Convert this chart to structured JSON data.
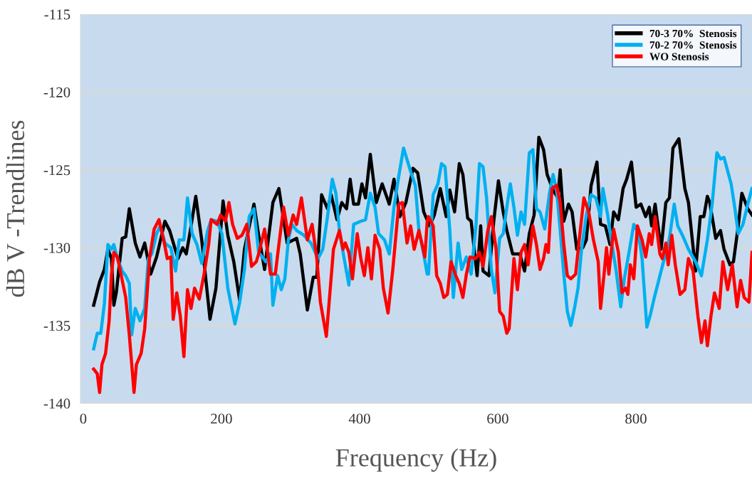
{
  "chart_data": {
    "type": "line",
    "xlabel": "Frequency (Hz)",
    "ylabel": "dB V -Trendlines",
    "xlim": [
      -4,
      968
    ],
    "xticks": [
      0,
      200,
      400,
      600,
      800
    ],
    "ylim": [
      -140,
      -115
    ],
    "yticks": [
      -140,
      -135,
      -130,
      -125,
      -120,
      -115
    ],
    "grid": "y",
    "legend": "top right",
    "marker": "none",
    "line_style": "solid",
    "series": [
      {
        "name": "70-3 70%  Stenosis",
        "color": "#000000",
        "x": [
          15.1,
          23.7,
          30.6,
          35.7,
          40.9,
          44.3,
          47.8,
          56.4,
          61.5,
          66.7,
          75.3,
          82.1,
          89.0,
          97.6,
          106.2,
          118.2,
          125.1,
          137.1,
          144.0,
          149.1,
          154.3,
          162.9,
          171.5,
          183.5,
          192.1,
          202.4,
          209.3,
          217.9,
          226.5,
          233.3,
          247.1,
          253.9,
          262.5,
          274.5,
          283.2,
          295.2,
          308.9,
          314.1,
          324.4,
          332.9,
          338.1,
          345.0,
          353.6,
          358.8,
          367.3,
          374.2,
          381.1,
          386.3,
          391.4,
          398.3,
          403.4,
          408.6,
          415.5,
          424.1,
          432.7,
          443.0,
          449.8,
          458.4,
          467.0,
          477.3,
          484.2,
          492.8,
          501.4,
          508.2,
          516.8,
          525.4,
          530.6,
          537.5,
          544.3,
          549.5,
          556.4,
          561.5,
          570.1,
          575.3,
          578.7,
          587.3,
          594.2,
          601.0,
          607.9,
          613.1,
          621.6,
          631.9,
          638.8,
          645.7,
          652.6,
          659.5,
          666.3,
          671.5,
          680.1,
          687.0,
          690.4,
          695.6,
          702.4,
          707.6,
          714.4,
          723.0,
          728.2,
          735.1,
          743.6,
          748.8,
          755.7,
          762.5,
          767.7,
          774.6,
          781.4,
          786.6,
          793.5,
          800.3,
          807.2,
          814.1,
          819.3,
          822.7,
          827.8,
          836.4,
          843.3,
          848.5,
          853.6,
          862.2,
          870.8,
          876.0,
          886.3,
          893.1,
          898.3,
          903.4,
          906.9,
          915.5,
          922.4,
          927.5,
          936.1,
          941.2,
          948.1,
          953.3,
          961.9,
          968.0
        ],
        "values": [
          -133.7,
          -132.2,
          -131.4,
          -130.1,
          -130.7,
          -133.7,
          -132.9,
          -129.4,
          -129.3,
          -127.5,
          -129.7,
          -130.6,
          -129.7,
          -131.7,
          -130.6,
          -128.3,
          -128.9,
          -130.7,
          -130.0,
          -130.4,
          -129.1,
          -126.7,
          -129.5,
          -134.6,
          -132.6,
          -127.0,
          -129.2,
          -130.9,
          -133.4,
          -130.1,
          -127.2,
          -129.2,
          -131.4,
          -127.1,
          -126.2,
          -129.7,
          -129.4,
          -130.4,
          -134.0,
          -131.9,
          -131.9,
          -126.6,
          -127.5,
          -126.6,
          -128.2,
          -127.1,
          -127.5,
          -125.6,
          -127.2,
          -127.2,
          -125.9,
          -126.8,
          -124.0,
          -127.1,
          -125.9,
          -127.2,
          -125.6,
          -128.0,
          -127.1,
          -124.9,
          -125.2,
          -127.7,
          -128.6,
          -127.9,
          -126.2,
          -128.0,
          -126.3,
          -127.7,
          -124.6,
          -125.3,
          -128.1,
          -128.3,
          -131.8,
          -128.6,
          -131.5,
          -131.8,
          -128.3,
          -125.7,
          -127.7,
          -128.9,
          -130.4,
          -130.4,
          -131.5,
          -129.1,
          -127.9,
          -122.9,
          -123.7,
          -125.3,
          -126.3,
          -126.8,
          -125.0,
          -128.3,
          -127.2,
          -127.7,
          -130.1,
          -130.0,
          -129.5,
          -126.0,
          -124.5,
          -128.5,
          -128.6,
          -129.8,
          -127.7,
          -128.2,
          -126.2,
          -125.6,
          -124.5,
          -127.4,
          -127.2,
          -128.0,
          -127.4,
          -128.6,
          -127.2,
          -130.1,
          -127.1,
          -126.8,
          -123.6,
          -123.0,
          -126.2,
          -127.1,
          -131.5,
          -128.0,
          -128.0,
          -126.7,
          -127.1,
          -129.4,
          -128.9,
          -130.1,
          -131.1,
          -130.9,
          -128.6,
          -126.5,
          -127.5,
          -127.9
        ]
      },
      {
        "name": "70-2 70%  Stenosis",
        "color": "#00b0f0",
        "x": [
          15.1,
          20.3,
          25.4,
          30.6,
          35.7,
          40.9,
          44.3,
          49.5,
          56.4,
          61.5,
          66.7,
          70.1,
          75.3,
          82.1,
          89.0,
          94.2,
          99.3,
          106.2,
          111.3,
          118.2,
          126.8,
          133.7,
          138.8,
          145.7,
          150.9,
          157.7,
          164.6,
          171.5,
          180.1,
          185.2,
          193.8,
          200.7,
          209.3,
          219.6,
          226.5,
          233.3,
          240.2,
          247.1,
          253.9,
          264.3,
          271.1,
          274.5,
          281.4,
          286.6,
          291.8,
          296.9,
          302.1,
          308.9,
          319.3,
          329.6,
          339.9,
          346.7,
          353.6,
          360.5,
          365.7,
          370.8,
          377.7,
          384.5,
          391.4,
          401.8,
          408.6,
          415.5,
          422.4,
          427.5,
          436.1,
          443.0,
          449.8,
          456.7,
          463.6,
          473.9,
          480.7,
          485.9,
          492.8,
          497.9,
          499.7,
          506.5,
          513.4,
          518.6,
          523.7,
          530.6,
          535.7,
          542.6,
          547.8,
          554.6,
          561.5,
          568.4,
          573.5,
          578.7,
          583.8,
          590.7,
          595.9,
          602.7,
          607.9,
          613.1,
          618.2,
          623.4,
          628.5,
          633.7,
          638.8,
          645.7,
          650.9,
          656.0,
          661.2,
          668.0,
          674.9,
          680.1,
          685.2,
          690.4,
          695.6,
          700.7,
          705.8,
          711.0,
          716.2,
          721.3,
          728.2,
          735.1,
          741.9,
          748.8,
          752.2,
          759.1,
          764.3,
          771.1,
          778.0,
          783.2,
          790.0,
          796.9,
          803.8,
          808.9,
          815.8,
          820.9,
          826.1,
          833.0,
          839.9,
          848.5,
          855.4,
          860.5,
          867.3,
          876.0,
          886.3,
          894.8,
          903.4,
          910.3,
          917.2,
          922.4,
          927.5,
          937.8,
          943.0,
          948.1,
          954.9,
          961.9,
          968.0
        ],
        "values": [
          -136.5,
          -135.5,
          -135.5,
          -133.6,
          -129.8,
          -130.1,
          -129.8,
          -130.7,
          -131.5,
          -131.8,
          -132.3,
          -135.6,
          -133.9,
          -134.7,
          -133.9,
          -130.7,
          -130.4,
          -129.1,
          -128.6,
          -129.7,
          -130.0,
          -131.5,
          -129.5,
          -129.5,
          -126.8,
          -129.1,
          -129.8,
          -131.0,
          -128.9,
          -128.2,
          -128.3,
          -129.1,
          -132.6,
          -134.9,
          -133.5,
          -131.4,
          -128.0,
          -127.5,
          -130.3,
          -130.9,
          -130.4,
          -133.7,
          -131.8,
          -132.7,
          -132.0,
          -129.5,
          -128.5,
          -128.9,
          -129.2,
          -129.7,
          -130.7,
          -130.1,
          -128.0,
          -125.6,
          -126.5,
          -128.9,
          -130.7,
          -132.4,
          -128.5,
          -128.3,
          -128.2,
          -126.5,
          -127.4,
          -129.1,
          -129.5,
          -130.4,
          -127.4,
          -125.4,
          -123.6,
          -125.1,
          -126.0,
          -128.9,
          -130.4,
          -131.7,
          -131.7,
          -126.6,
          -125.9,
          -124.6,
          -124.8,
          -128.9,
          -133.2,
          -129.7,
          -131.4,
          -130.6,
          -131.7,
          -128.6,
          -124.6,
          -124.8,
          -126.8,
          -131.4,
          -132.9,
          -129.4,
          -129.1,
          -127.4,
          -125.9,
          -127.4,
          -129.2,
          -127.7,
          -128.5,
          -123.9,
          -123.7,
          -127.5,
          -127.7,
          -128.8,
          -126.5,
          -125.3,
          -126.3,
          -128.9,
          -131.7,
          -134.1,
          -135.0,
          -133.9,
          -132.6,
          -130.1,
          -127.9,
          -126.6,
          -126.8,
          -128.0,
          -126.2,
          -127.9,
          -129.5,
          -131.4,
          -133.8,
          -132.0,
          -130.3,
          -128.5,
          -129.1,
          -130.7,
          -135.1,
          -134.3,
          -133.3,
          -132.1,
          -130.9,
          -129.4,
          -127.2,
          -128.6,
          -129.2,
          -130.1,
          -130.9,
          -131.8,
          -129.5,
          -127.2,
          -123.9,
          -124.3,
          -124.2,
          -125.9,
          -127.4,
          -129.1,
          -128.5,
          -127.2,
          -126.2
        ]
      },
      {
        "name": "WO Stenosis",
        "color": "#ff0000",
        "x": [
          15.1,
          20.3,
          23.7,
          27.1,
          32.3,
          37.5,
          40.9,
          44.3,
          49.5,
          54.6,
          61.5,
          66.7,
          73.5,
          77.0,
          83.8,
          89.0,
          95.9,
          102.7,
          109.6,
          116.5,
          121.6,
          126.8,
          130.2,
          135.4,
          140.5,
          145.7,
          150.9,
          156.0,
          161.2,
          168.0,
          174.9,
          181.8,
          185.2,
          193.8,
          198.9,
          205.8,
          210.9,
          216.2,
          223.0,
          229.9,
          236.8,
          243.6,
          250.5,
          253.9,
          262.5,
          271.1,
          278.0,
          283.2,
          290.0,
          296.9,
          303.8,
          308.9,
          315.8,
          324.4,
          331.3,
          338.1,
          343.3,
          351.9,
          362.2,
          370.8,
          375.9,
          379.4,
          384.5,
          389.7,
          396.6,
          401.8,
          406.9,
          412.0,
          417.2,
          422.4,
          429.2,
          434.4,
          441.2,
          448.1,
          456.7,
          461.9,
          468.7,
          473.9,
          479.0,
          485.9,
          494.5,
          497.9,
          499.7,
          506.5,
          511.6,
          516.8,
          521.9,
          527.1,
          532.3,
          539.2,
          544.3,
          549.5,
          554.6,
          559.8,
          568.4,
          573.5,
          578.7,
          585.6,
          590.7,
          597.6,
          602.7,
          607.9,
          613.1,
          616.5,
          623.4,
          628.5,
          633.7,
          638.8,
          644.0,
          650.9,
          656.0,
          661.2,
          666.3,
          669.8,
          673.2,
          678.4,
          685.2,
          690.4,
          695.6,
          700.7,
          705.8,
          712.7,
          717.9,
          724.7,
          731.6,
          738.5,
          745.4,
          748.8,
          753.9,
          757.4,
          760.8,
          767.7,
          774.6,
          779.7,
          784.9,
          788.3,
          791.8,
          796.9,
          802.1,
          808.9,
          814.1,
          819.3,
          822.7,
          827.8,
          834.7,
          838.1,
          843.3,
          846.7,
          851.9,
          857.0,
          863.9,
          870.8,
          876.0,
          882.8,
          889.7,
          894.8,
          900.0,
          903.4,
          908.6,
          913.7,
          920.6,
          925.8,
          932.7,
          939.5,
          946.4,
          951.5,
          956.7,
          963.6,
          968.0
        ],
        "values": [
          -137.8,
          -138.1,
          -139.3,
          -137.5,
          -136.8,
          -134.7,
          -131.7,
          -130.3,
          -130.6,
          -131.7,
          -133.2,
          -135.6,
          -139.3,
          -137.5,
          -136.8,
          -135.2,
          -130.7,
          -128.8,
          -128.2,
          -129.5,
          -130.7,
          -130.6,
          -134.6,
          -132.9,
          -134.4,
          -137.0,
          -132.7,
          -133.9,
          -132.6,
          -133.3,
          -131.7,
          -129.7,
          -128.2,
          -128.5,
          -127.9,
          -128.3,
          -127.1,
          -128.5,
          -129.4,
          -129.2,
          -128.5,
          -131.2,
          -130.9,
          -130.4,
          -128.8,
          -131.7,
          -131.7,
          -129.8,
          -127.4,
          -129.2,
          -127.9,
          -128.5,
          -126.8,
          -129.5,
          -128.5,
          -130.7,
          -133.5,
          -135.7,
          -130.1,
          -128.9,
          -130.1,
          -129.7,
          -130.3,
          -132.0,
          -129.1,
          -130.7,
          -131.8,
          -130.0,
          -132.0,
          -129.2,
          -130.1,
          -132.6,
          -134.2,
          -131.4,
          -127.2,
          -127.1,
          -129.7,
          -128.6,
          -130.1,
          -128.9,
          -130.6,
          -128.3,
          -128.0,
          -128.6,
          -131.8,
          -132.3,
          -133.2,
          -133.0,
          -130.9,
          -131.8,
          -132.3,
          -133.2,
          -131.7,
          -130.6,
          -130.7,
          -130.3,
          -131.2,
          -128.9,
          -128.0,
          -130.1,
          -134.1,
          -134.4,
          -135.5,
          -135.2,
          -130.7,
          -132.7,
          -130.3,
          -129.8,
          -131.1,
          -128.6,
          -129.8,
          -131.4,
          -130.7,
          -129.8,
          -130.3,
          -126.2,
          -126.0,
          -127.1,
          -129.8,
          -131.8,
          -132.0,
          -131.7,
          -129.5,
          -126.8,
          -127.7,
          -129.5,
          -130.9,
          -133.9,
          -131.7,
          -130.0,
          -131.7,
          -128.8,
          -130.3,
          -132.9,
          -132.6,
          -133.0,
          -131.1,
          -132.0,
          -128.6,
          -129.5,
          -130.6,
          -129.1,
          -129.8,
          -128.0,
          -130.4,
          -130.7,
          -129.7,
          -131.1,
          -129.2,
          -131.1,
          -133.0,
          -132.7,
          -130.7,
          -131.5,
          -134.4,
          -136.1,
          -134.7,
          -136.3,
          -134.4,
          -132.9,
          -133.9,
          -130.9,
          -132.7,
          -131.1,
          -133.8,
          -132.1,
          -133.2,
          -133.5,
          -130.3
        ]
      }
    ]
  }
}
